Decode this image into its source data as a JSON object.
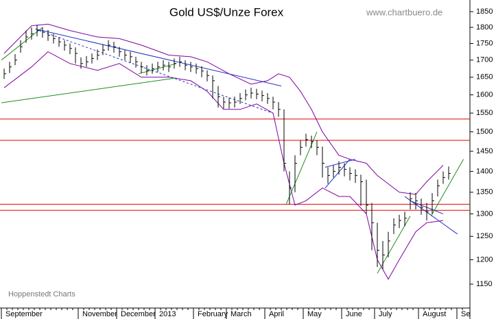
{
  "chart_data": {
    "type": "ohlc",
    "title": "Gold US$/Unze Forex",
    "source": "www.chartbuero.de",
    "credit": "Hoppenstedt Charts",
    "log": true,
    "ylim": [
      1103,
      1888
    ],
    "yticks": [
      1150,
      1200,
      1250,
      1300,
      1350,
      1400,
      1450,
      1500,
      1550,
      1600,
      1650,
      1700,
      1750,
      1800,
      1850
    ],
    "categories": [
      "September",
      null,
      null,
      null,
      null,
      null,
      null,
      null,
      null,
      null,
      null,
      null,
      null,
      null,
      "November",
      null,
      null,
      null,
      null,
      null,
      null,
      "December",
      null,
      null,
      null,
      null,
      null,
      null,
      "2013",
      null,
      null,
      null,
      null,
      null,
      null,
      "February",
      null,
      null,
      null,
      null,
      null,
      "March",
      null,
      null,
      null,
      null,
      null,
      null,
      "April",
      null,
      null,
      null,
      null,
      null,
      null,
      "May",
      null,
      null,
      null,
      null,
      null,
      null,
      "June",
      null,
      null,
      null,
      null,
      null,
      "July",
      null,
      null,
      null,
      null,
      null,
      null,
      null,
      "August",
      null,
      null,
      null,
      null,
      null,
      null,
      "Se",
      null
    ],
    "bar_color": "#000000",
    "high": [
      1675,
      1695,
      1718,
      1760,
      1790,
      1800,
      1808,
      1800,
      1792,
      1780,
      1770,
      1760,
      1750,
      1738,
      1708,
      1712,
      1720,
      1732,
      1748,
      1760,
      1755,
      1740,
      1730,
      1725,
      1710,
      1695,
      1685,
      1690,
      1695,
      1700,
      1695,
      1705,
      1710,
      1700,
      1695,
      1690,
      1682,
      1670,
      1655,
      1625,
      1595,
      1592,
      1595,
      1605,
      1615,
      1620,
      1617,
      1612,
      1605,
      1595,
      1580,
      1560,
      1400,
      1440,
      1478,
      1495,
      1490,
      1478,
      1462,
      1410,
      1415,
      1425,
      1420,
      1410,
      1405,
      1392,
      1380,
      1325,
      1280,
      1240,
      1260,
      1290,
      1298,
      1305,
      1350,
      1348,
      1335,
      1325,
      1348,
      1380,
      1400,
      1412,
      null,
      null,
      null
    ],
    "low": [
      1645,
      1662,
      1685,
      1722,
      1752,
      1762,
      1772,
      1768,
      1758,
      1750,
      1740,
      1728,
      1718,
      1690,
      1675,
      1680,
      1690,
      1700,
      1715,
      1728,
      1722,
      1710,
      1700,
      1692,
      1678,
      1662,
      1655,
      1660,
      1665,
      1670,
      1665,
      1675,
      1680,
      1670,
      1665,
      1660,
      1650,
      1638,
      1590,
      1565,
      1562,
      1562,
      1565,
      1575,
      1585,
      1590,
      1588,
      1582,
      1575,
      1560,
      1540,
      1400,
      1322,
      1350,
      1440,
      1462,
      1458,
      1440,
      1385,
      1370,
      1385,
      1392,
      1388,
      1378,
      1372,
      1318,
      1300,
      1220,
      1185,
      1180,
      1205,
      1255,
      1268,
      1272,
      1310,
      1310,
      1298,
      1285,
      1300,
      1340,
      1370,
      1380,
      null,
      null,
      null
    ],
    "close": [
      1660,
      1680,
      1700,
      1740,
      1770,
      1780,
      1790,
      1785,
      1775,
      1765,
      1755,
      1745,
      1735,
      1720,
      1690,
      1695,
      1705,
      1715,
      1730,
      1745,
      1740,
      1725,
      1715,
      1710,
      1695,
      1680,
      1670,
      1675,
      1680,
      1685,
      1680,
      1690,
      1695,
      1685,
      1680,
      1675,
      1668,
      1655,
      1640,
      1595,
      1580,
      1578,
      1580,
      1590,
      1600,
      1605,
      1602,
      1598,
      1590,
      1580,
      1560,
      1420,
      1360,
      1420,
      1460,
      1480,
      1475,
      1460,
      1420,
      1390,
      1400,
      1410,
      1405,
      1395,
      1390,
      1375,
      1320,
      1280,
      1220,
      1210,
      1240,
      1275,
      1285,
      1290,
      1335,
      1330,
      1315,
      1305,
      1330,
      1365,
      1385,
      1395,
      null,
      null,
      null
    ],
    "bands": [
      {
        "color": "#8000a0",
        "x": [
          0,
          5,
          8,
          12,
          17,
          21,
          25,
          30,
          34,
          37,
          41,
          45,
          48,
          50,
          52,
          54,
          56,
          58,
          61,
          63,
          66,
          68,
          70,
          72,
          75,
          77,
          80
        ],
        "values": [
          1720,
          1805,
          1810,
          1790,
          1770,
          1765,
          1745,
          1715,
          1710,
          1695,
          1660,
          1630,
          1640,
          1660,
          1650,
          1610,
          1560,
          1500,
          1440,
          1430,
          1420,
          1390,
          1370,
          1350,
          1345,
          1375,
          1415
        ]
      },
      {
        "color": "#8000a0",
        "x": [
          0,
          5,
          8,
          12,
          17,
          21,
          25,
          30,
          34,
          37,
          40,
          43,
          46,
          49,
          51,
          53,
          55,
          58,
          61,
          63,
          66,
          68,
          70,
          72,
          75,
          77,
          80
        ],
        "values": [
          1620,
          1680,
          1725,
          1690,
          1670,
          1690,
          1650,
          1650,
          1640,
          1610,
          1560,
          1560,
          1575,
          1550,
          1420,
          1320,
          1330,
          1360,
          1340,
          1340,
          1300,
          1200,
          1160,
          1200,
          1260,
          1280,
          1285
        ]
      }
    ],
    "levels": [
      1534,
      1478,
      1322,
      1308
    ],
    "level_color": "#e00000",
    "trendlines": [
      {
        "x": [
          -0.5,
          31.4
        ],
        "y": [
          1578,
          1648
        ],
        "color": "#1e8c1e",
        "dashed": false
      },
      {
        "x": [
          -0.5,
          7
        ],
        "y": [
          1700,
          1800
        ],
        "color": "#1e8c1e",
        "dashed": false
      },
      {
        "x": [
          5.7,
          50.5
        ],
        "y": [
          1795,
          1625
        ],
        "color": "#2030c0",
        "dashed": false
      },
      {
        "x": [
          6.4,
          48.9
        ],
        "y": [
          1790,
          1550
        ],
        "color": "#2030c0",
        "dashed": true
      },
      {
        "x": [
          24.5,
          31.4
        ],
        "y": [
          1660,
          1690
        ],
        "color": "#1e8c1e",
        "dashed": false
      },
      {
        "x": [
          51.4,
          57
        ],
        "y": [
          1322,
          1500
        ],
        "color": "#1e8c1e",
        "dashed": false
      },
      {
        "x": [
          58.5,
          64
        ],
        "y": [
          1410,
          1430
        ],
        "color": "#2030c0",
        "dashed": false
      },
      {
        "x": [
          58.5,
          63
        ],
        "y": [
          1360,
          1430
        ],
        "color": "#2030c0",
        "dashed": false
      },
      {
        "x": [
          68,
          74
        ],
        "y": [
          1172,
          1295
        ],
        "color": "#1e8c1e",
        "dashed": false
      },
      {
        "x": [
          73,
          82.6
        ],
        "y": [
          1340,
          1255
        ],
        "color": "#2030c0",
        "dashed": false
      },
      {
        "x": [
          74,
          80
        ],
        "y": [
          1330,
          1300
        ],
        "color": "#2030c0",
        "dashed": false
      },
      {
        "x": [
          77.8,
          83.7
        ],
        "y": [
          1295,
          1430
        ],
        "color": "#1e8c1e",
        "dashed": false
      }
    ]
  }
}
